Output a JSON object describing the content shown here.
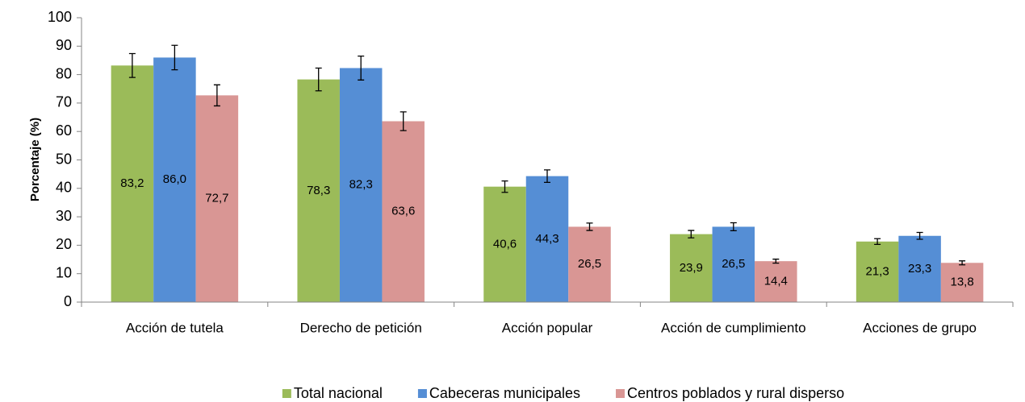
{
  "chart_data": {
    "type": "bar",
    "y_label": "Porcentaje (%)",
    "categories": [
      "Acción de tutela",
      "Derecho de petición",
      "Acción popular",
      "Acción de cumplimiento",
      "Acciones de grupo"
    ],
    "series": [
      {
        "name": "Total nacional",
        "color": "#9bbb59",
        "values": [
          83.2,
          78.3,
          40.6,
          23.9,
          21.3
        ],
        "value_labels": [
          "83,2",
          "78,3",
          "40,6",
          "23,9",
          "21,3"
        ],
        "errors": [
          4.2,
          4.0,
          2.0,
          1.3,
          1.0
        ]
      },
      {
        "name": "Cabeceras municipales",
        "color": "#558ed5",
        "values": [
          86.0,
          82.3,
          44.3,
          26.5,
          23.3
        ],
        "value_labels": [
          "86,0",
          "82,3",
          "44,3",
          "26,5",
          "23,3"
        ],
        "errors": [
          4.3,
          4.2,
          2.2,
          1.4,
          1.2
        ]
      },
      {
        "name": "Centros poblados y rural disperso",
        "color": "#d99694",
        "values": [
          72.7,
          63.6,
          26.5,
          14.4,
          13.8
        ],
        "value_labels": [
          "72,7",
          "63,6",
          "26,5",
          "14,4",
          "13,8"
        ],
        "errors": [
          3.7,
          3.3,
          1.3,
          0.7,
          0.7
        ]
      }
    ],
    "ylim": [
      0,
      100
    ],
    "yticks": [
      0,
      10,
      20,
      30,
      40,
      50,
      60,
      70,
      80,
      90,
      100
    ],
    "legend": "bottom"
  }
}
